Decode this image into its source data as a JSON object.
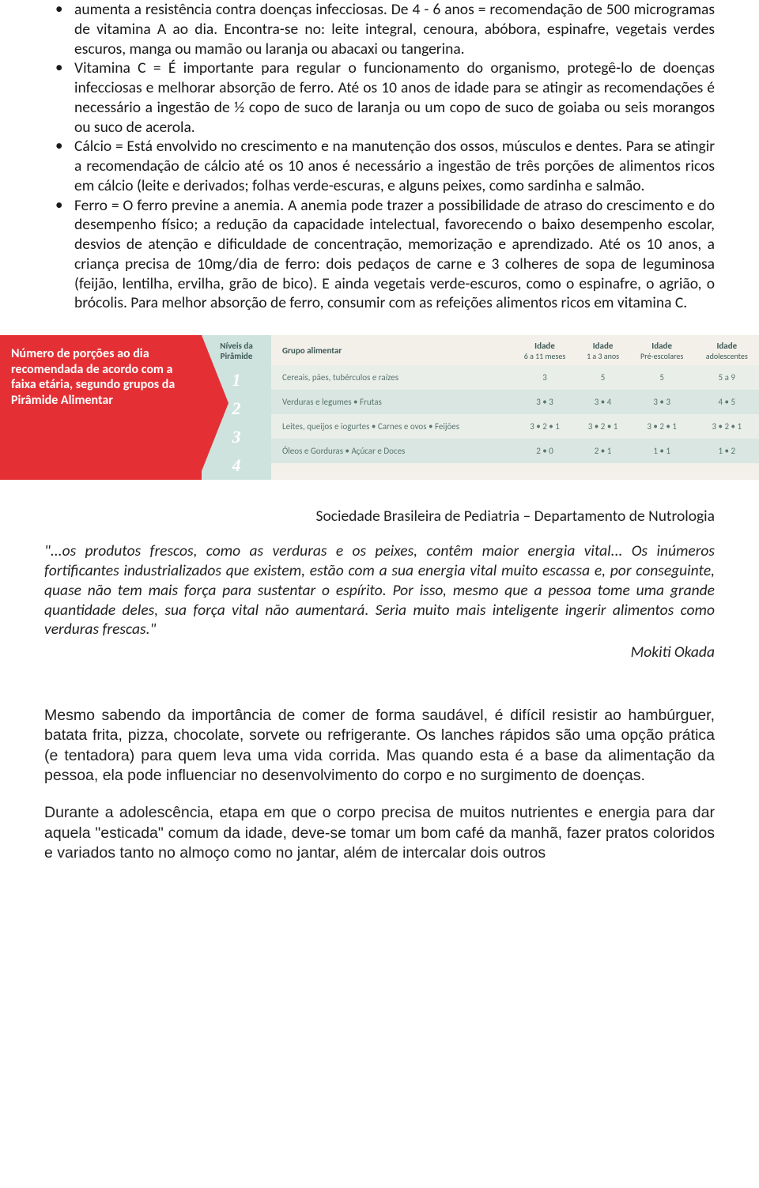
{
  "bullets": {
    "a": "aumenta a resistência contra doenças infecciosas. De 4 - 6 anos = recomendação de 500 microgramas de vitamina A ao dia. Encontra-se no: leite integral, cenoura, abóbora, espinafre, vegetais verdes escuros, manga ou mamão ou laranja ou abacaxi ou tangerina.",
    "b": "Vitamina C = É importante para regular o funcionamento do organismo, protegê-lo de doenças infecciosas e melhorar absorção de ferro. Até os 10 anos de idade para se atingir as recomendações é necessário a ingestão de ½ copo de suco de laranja ou um copo de suco de goiaba ou seis morangos ou suco de acerola.",
    "c": "Cálcio = Está envolvido no crescimento e na manutenção dos ossos, músculos e dentes. Para se atingir a recomendação de cálcio até os 10 anos é necessário a ingestão de três porções de alimentos ricos em cálcio (leite e derivados; folhas verde-escuras, e alguns peixes, como sardinha e salmão.",
    "d": "Ferro = O ferro previne a anemia. A anemia pode trazer a possibilidade de atraso do crescimento e do desempenho físico; a redução da capacidade intelectual, favorecendo o baixo desempenho escolar, desvios de atenção e dificuldade de concentração, memorização e aprendizado. Até os 10 anos, a criança precisa de 10mg/dia de ferro: dois pedaços de carne e 3 colheres de sopa de leguminosa (feijão, lentilha, ervilha, grão de bico). E ainda vegetais verde-escuros, como o espinafre, o agrião, o brócolis. Para melhor absorção de ferro, consumir com as refeições alimentos ricos em vitamina C."
  },
  "pyramid": {
    "arrow_text": "Número de porções ao dia recomendada de acordo com a faixa etária, segundo grupos da Pirâmide Alimentar",
    "levels_header": "Níveis da Pirâmide",
    "level_nums": [
      "1",
      "2",
      "3",
      "4"
    ],
    "headers": {
      "group": "Grupo alimentar",
      "age1_top": "Idade",
      "age1_sub": "6 a 11 meses",
      "age2_top": "Idade",
      "age2_sub": "1 a 3 anos",
      "age3_top": "Idade",
      "age3_sub": "Pré-escolares",
      "age4_top": "Idade",
      "age4_sub": "adolescentes"
    },
    "rows": [
      {
        "group": "Cereais, pães, tubérculos e raízes",
        "v": [
          "3",
          "5",
          "5",
          "5 a 9"
        ]
      },
      {
        "group": "Verduras e legumes • Frutas",
        "v": [
          "3 • 3",
          "3 • 4",
          "3 • 3",
          "4 • 5"
        ]
      },
      {
        "group": "Leites, queijos e iogurtes • Carnes e ovos • Feijões",
        "v": [
          "3 • 2 • 1",
          "3 • 2 • 1",
          "3 • 2 • 1",
          "3 • 2 • 1"
        ]
      },
      {
        "group": "Óleos e Gorduras • Açúcar e Doces",
        "v": [
          "2 • 0",
          "2 • 1",
          "1 • 1",
          "1 • 2"
        ]
      }
    ],
    "colors": {
      "arrow_bg": "#e43035",
      "arrow_text": "#ffffff",
      "panel_bg": "#f3f0ea",
      "levels_bg": "#cfe3de",
      "level_num_color": "#ffffff",
      "header_text": "#3e5a56",
      "cell_text": "#5a7570",
      "band_a": "#e9eee9",
      "band_b": "#d9e6e1"
    }
  },
  "source": "Sociedade Brasileira de Pediatria – Departamento de Nutrologia",
  "quote": "\"...os produtos frescos, como as verduras e os peixes, contêm maior energia vital... Os inúmeros fortificantes industrializados que existem, estão com a sua energia vital muito escassa e, por conseguinte, quase não tem mais força para sustentar o espírito. Por isso, mesmo que a pessoa tome uma grande quantidade deles, sua força vital não aumentará. Seria muito mais inteligente ingerir alimentos como verduras frescas.\"",
  "author": "Mokiti Okada",
  "para1": "Mesmo sabendo da importância de comer de forma saudável, é difícil resistir ao hambúrguer, batata frita, pizza, chocolate, sorvete ou refrigerante. Os lanches rápidos são uma opção prática (e tentadora) para quem leva uma vida corrida. Mas quando esta é a base da alimentação da pessoa, ela pode influenciar no desenvolvimento do corpo e no surgimento de doenças.",
  "para2": "Durante a adolescência, etapa em que o corpo precisa de muitos nutrientes e energia para dar aquela \"esticada\" comum da idade, deve-se tomar um bom café da manhã, fazer pratos coloridos e variados tanto no almoço como no jantar, além de intercalar dois outros"
}
